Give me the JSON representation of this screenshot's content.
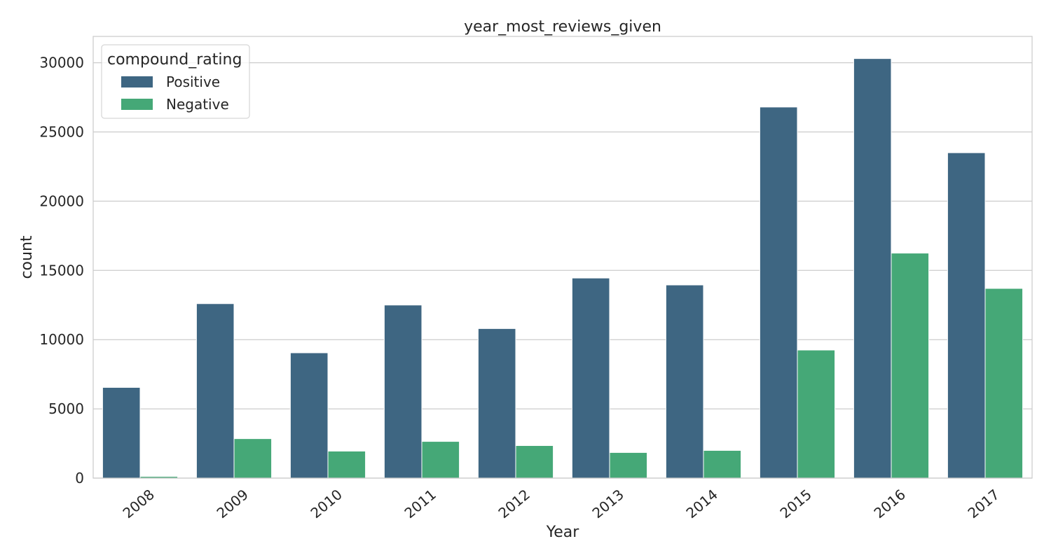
{
  "chart_data": {
    "type": "bar",
    "title": "year_most_reviews_given",
    "xlabel": "Year",
    "ylabel": "count",
    "categories": [
      "2008",
      "2009",
      "2010",
      "2011",
      "2012",
      "2013",
      "2014",
      "2015",
      "2016",
      "2017"
    ],
    "series": [
      {
        "name": "Positive",
        "color": "#3e6682",
        "values": [
          6550,
          12600,
          9050,
          12500,
          10800,
          14450,
          13950,
          26800,
          30300,
          23500
        ]
      },
      {
        "name": "Negative",
        "color": "#45a877",
        "values": [
          120,
          2850,
          1950,
          2650,
          2350,
          1850,
          2000,
          9250,
          16250,
          13700
        ]
      }
    ],
    "yticks": [
      0,
      5000,
      10000,
      15000,
      20000,
      25000,
      30000
    ],
    "ylim": [
      0,
      31900
    ],
    "grid": true,
    "legend": {
      "title": "compound_rating",
      "placement": "top-left"
    }
  }
}
